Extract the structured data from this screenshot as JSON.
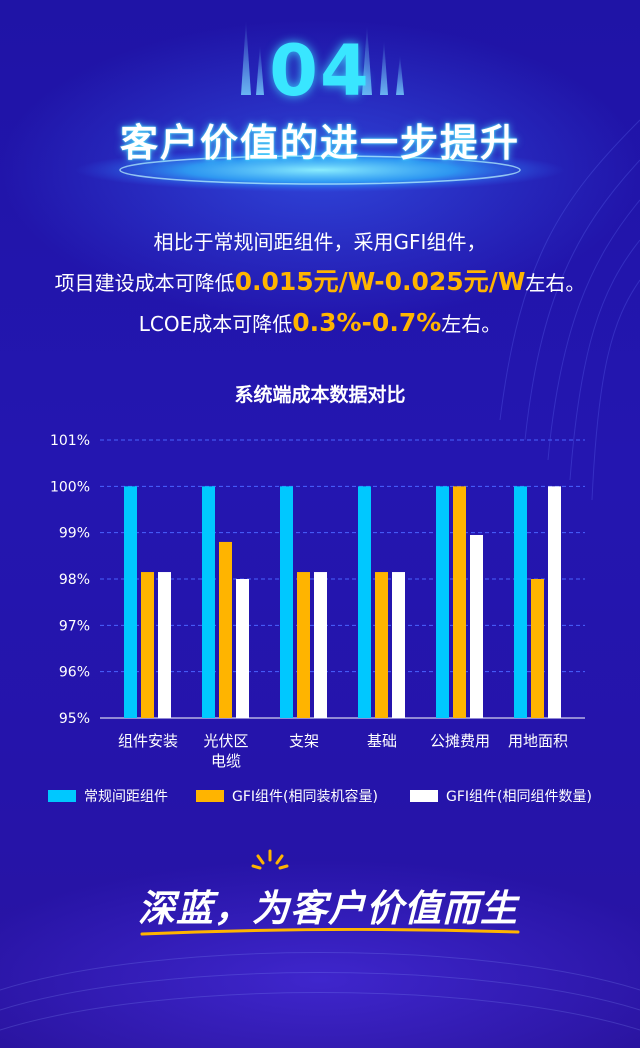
{
  "header": {
    "number": "04",
    "title": "客户价值的进一步提升"
  },
  "intro": {
    "line1": "相比于常规间距组件，采用GFI组件，",
    "line2_prefix": "项目建设成本可降低",
    "line2_highlight": "0.015元/W-0.025元/W",
    "line2_suffix": "左右。",
    "line3_prefix": "LCOE成本可降低",
    "line3_highlight": "0.3%-0.7%",
    "line3_suffix": "左右。"
  },
  "colors": {
    "accent_cyan": "#00c8ff",
    "accent_orange": "#ffb400",
    "white": "#ffffff",
    "background": "#2416b0"
  },
  "chart_data": {
    "type": "bar",
    "title": "系统端成本数据对比",
    "categories": [
      "组件安装",
      "光伏区电缆",
      "支架",
      "基础",
      "公摊费用",
      "用地面积"
    ],
    "category_lines": [
      [
        "组件安装"
      ],
      [
        "光伏区",
        "电缆"
      ],
      [
        "支架"
      ],
      [
        "基础"
      ],
      [
        "公摊费用"
      ],
      [
        "用地面积"
      ]
    ],
    "series": [
      {
        "name": "常规间距组件",
        "color": "#00c8ff",
        "values": [
          100,
          100,
          100,
          100,
          100,
          100
        ]
      },
      {
        "name": "GFI组件(相同装机容量)",
        "color": "#ffb400",
        "values": [
          98.15,
          98.8,
          98.15,
          98.15,
          100,
          98.0
        ]
      },
      {
        "name": "GFI组件(相同组件数量)",
        "color": "#ffffff",
        "values": [
          98.15,
          98.0,
          98.15,
          98.15,
          98.95,
          100
        ]
      }
    ],
    "yticks": [
      "101%",
      "100%",
      "99%",
      "98%",
      "97%",
      "96%",
      "95%"
    ],
    "ylim": [
      95,
      101
    ],
    "grid": true,
    "legend_position": "bottom"
  },
  "slogan": "深蓝，为客户价值而生"
}
